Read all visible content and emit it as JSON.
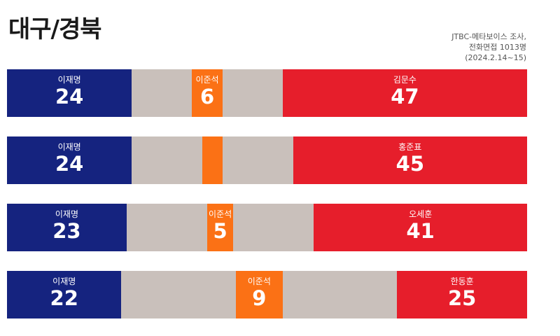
{
  "title": "대구/경북",
  "source": [
    "JTBC-메타보이스 조사,",
    "전화면접 1013명",
    "(2024.2.14~15)"
  ],
  "colors": {
    "left": "#15237f",
    "middle": "#fb7115",
    "right": "#e61e2b",
    "undecided": "#c9c0bb"
  },
  "chart_data": {
    "type": "bar",
    "stacked": true,
    "orientation": "horizontal",
    "scale_max": 100,
    "rows": [
      {
        "left": {
          "name": "이재명",
          "value": 24
        },
        "middle": {
          "name": "이준석",
          "value": 6,
          "show_label": true
        },
        "right": {
          "name": "김문수",
          "value": 47
        }
      },
      {
        "left": {
          "name": "이재명",
          "value": 24
        },
        "middle": {
          "name": "",
          "value": 4,
          "show_label": false
        },
        "right": {
          "name": "홍준표",
          "value": 45
        }
      },
      {
        "left": {
          "name": "이재명",
          "value": 23
        },
        "middle": {
          "name": "이준석",
          "value": 5,
          "show_label": true
        },
        "right": {
          "name": "오세훈",
          "value": 41
        }
      },
      {
        "left": {
          "name": "이재명",
          "value": 22
        },
        "middle": {
          "name": "이준석",
          "value": 9,
          "show_label": true
        },
        "right": {
          "name": "한동훈",
          "value": 25
        }
      }
    ]
  }
}
